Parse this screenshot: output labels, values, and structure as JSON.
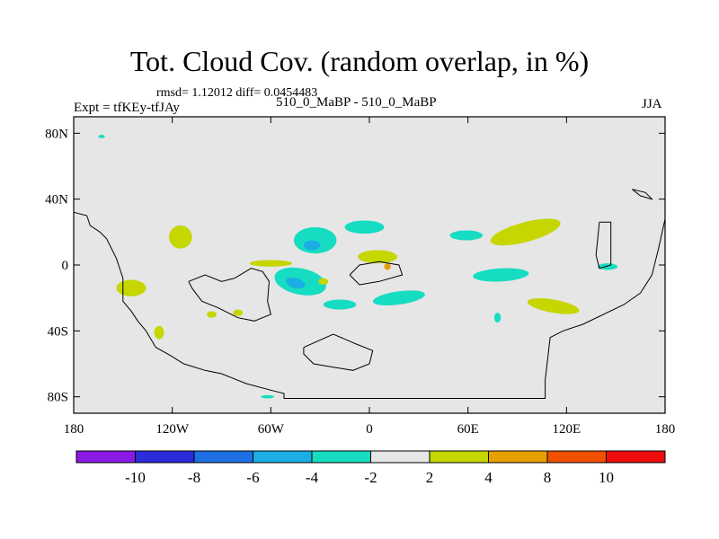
{
  "title": "Tot. Cloud Cov. (random overlap, in %)",
  "stats": "rmsd= 1.12012 diff= 0.0454483",
  "left_label": "Expt = tfKEy-tfJAy",
  "center_label": "510_0_MaBP - 510_0_MaBP",
  "right_label": "JJA",
  "colors": {
    "background_field": "#e6e6e6",
    "coastline": "#000000"
  },
  "chart_data": {
    "type": "heatmap",
    "projection": "cylindrical equidistant",
    "xlim": [
      -180,
      180
    ],
    "ylim": [
      -90,
      90
    ],
    "x_ticks": [
      {
        "value": -180,
        "label": "180"
      },
      {
        "value": -120,
        "label": "120W"
      },
      {
        "value": -60,
        "label": "60W"
      },
      {
        "value": 0,
        "label": "0"
      },
      {
        "value": 60,
        "label": "60E"
      },
      {
        "value": 120,
        "label": "120E"
      },
      {
        "value": 180,
        "label": "180"
      }
    ],
    "y_ticks": [
      {
        "value": 80,
        "label": "80N"
      },
      {
        "value": 40,
        "label": "40N"
      },
      {
        "value": 0,
        "label": "0"
      },
      {
        "value": -40,
        "label": "40S"
      },
      {
        "value": -80,
        "label": "80S"
      }
    ],
    "colorbar": {
      "levels": [
        -10,
        -8,
        -6,
        -4,
        -2,
        2,
        4,
        8,
        10
      ],
      "level_labels": [
        "-10",
        "-8",
        "-6",
        "-4",
        "-2",
        "2",
        "4",
        "8",
        "10"
      ],
      "colors": [
        "#8a1ae6",
        "#2b2bd9",
        "#1d6fe3",
        "#1aaee3",
        "#16dcc2",
        "#e6e6e6",
        "#c5d600",
        "#e6a000",
        "#f05000",
        "#ee0c0c"
      ]
    },
    "coastlines": [
      [
        [
          -180,
          32
        ],
        [
          -172,
          30
        ],
        [
          -170,
          24
        ],
        [
          -164,
          20
        ],
        [
          -160,
          16
        ],
        [
          -154,
          4
        ],
        [
          -150,
          -8
        ],
        [
          -150,
          -22
        ],
        [
          -145,
          -28
        ],
        [
          -141,
          -34
        ],
        [
          -136,
          -40
        ],
        [
          -130,
          -50
        ],
        [
          -121,
          -55
        ],
        [
          -113,
          -60
        ],
        [
          -100,
          -64
        ],
        [
          -90,
          -66
        ],
        [
          -75,
          -72
        ],
        [
          -60,
          -76
        ],
        [
          -52,
          -78
        ],
        [
          -52,
          -81
        ],
        [
          -20,
          -81
        ],
        [
          10,
          -81
        ],
        [
          40,
          -81
        ],
        [
          80,
          -81
        ],
        [
          107,
          -81
        ],
        [
          107,
          -70
        ],
        [
          110,
          -44
        ],
        [
          118,
          -40
        ],
        [
          130,
          -36
        ],
        [
          155,
          -24
        ],
        [
          165,
          -17
        ],
        [
          172,
          -6
        ],
        [
          176,
          10
        ],
        [
          180,
          28
        ]
      ],
      [
        [
          -110,
          -10
        ],
        [
          -100,
          -6
        ],
        [
          -90,
          -10
        ],
        [
          -82,
          -8
        ],
        [
          -72,
          -2
        ],
        [
          -65,
          -4
        ],
        [
          -61,
          -10
        ],
        [
          -62,
          -22
        ],
        [
          -60,
          -30
        ],
        [
          -70,
          -34
        ],
        [
          -80,
          -32
        ],
        [
          -92,
          -26
        ],
        [
          -102,
          -22
        ],
        [
          -108,
          -14
        ],
        [
          -110,
          -10
        ]
      ],
      [
        [
          -40,
          -50
        ],
        [
          -22,
          -42
        ],
        [
          -8,
          -48
        ],
        [
          2,
          -52
        ],
        [
          0,
          -60
        ],
        [
          -10,
          -64
        ],
        [
          -22,
          -62
        ],
        [
          -34,
          -60
        ],
        [
          -40,
          -54
        ],
        [
          -40,
          -50
        ]
      ],
      [
        [
          -12,
          -6
        ],
        [
          -6,
          0
        ],
        [
          6,
          2
        ],
        [
          18,
          0
        ],
        [
          20,
          -6
        ],
        [
          6,
          -10
        ],
        [
          -6,
          -12
        ],
        [
          -12,
          -6
        ]
      ],
      [
        [
          140,
          26
        ],
        [
          147,
          26
        ],
        [
          147,
          0
        ],
        [
          140,
          -2
        ],
        [
          138,
          6
        ],
        [
          140,
          26
        ]
      ],
      [
        [
          160,
          46
        ],
        [
          168,
          44
        ],
        [
          172,
          40
        ],
        [
          165,
          42
        ],
        [
          160,
          46
        ]
      ]
    ],
    "regions": [
      {
        "lon": -115,
        "lat": 17,
        "rx": 7,
        "ry": 7,
        "rot": -10,
        "level": 4
      },
      {
        "lon": -145,
        "lat": -14,
        "rx": 9,
        "ry": 5,
        "rot": 0,
        "level": 4
      },
      {
        "lon": -128,
        "lat": -41,
        "rx": 3,
        "ry": 4,
        "rot": 0,
        "level": 4
      },
      {
        "lon": -96,
        "lat": -30,
        "rx": 3,
        "ry": 2,
        "rot": 0,
        "level": 4
      },
      {
        "lon": -80,
        "lat": -29,
        "rx": 3,
        "ry": 2,
        "rot": 0,
        "level": 4
      },
      {
        "lon": -33,
        "lat": 15,
        "rx": 13,
        "ry": 8,
        "rot": 0,
        "level": -2
      },
      {
        "lon": -35,
        "lat": 12,
        "rx": 5,
        "ry": 3,
        "rot": 0,
        "level": -4
      },
      {
        "lon": -42,
        "lat": -10,
        "rx": 16,
        "ry": 8,
        "rot": 12,
        "level": -2
      },
      {
        "lon": -45,
        "lat": -11,
        "rx": 6,
        "ry": 3,
        "rot": 15,
        "level": -4
      },
      {
        "lon": -3,
        "lat": 23,
        "rx": 12,
        "ry": 4,
        "rot": 0,
        "level": -2
      },
      {
        "lon": -18,
        "lat": -24,
        "rx": 10,
        "ry": 3,
        "rot": 0,
        "level": -2
      },
      {
        "lon": 18,
        "lat": -20,
        "rx": 16,
        "ry": 4,
        "rot": -8,
        "level": -2
      },
      {
        "lon": -60,
        "lat": 1,
        "rx": 13,
        "ry": 2,
        "rot": 0,
        "level": 4
      },
      {
        "lon": -28,
        "lat": -10,
        "rx": 3,
        "ry": 2,
        "rot": 0,
        "level": 4
      },
      {
        "lon": 5,
        "lat": 5,
        "rx": 12,
        "ry": 4,
        "rot": 0,
        "level": 4
      },
      {
        "lon": 11,
        "lat": -1,
        "rx": 2,
        "ry": 2,
        "rot": 0,
        "level": 8
      },
      {
        "lon": 59,
        "lat": 18,
        "rx": 10,
        "ry": 3,
        "rot": 0,
        "level": -2
      },
      {
        "lon": 95,
        "lat": 20,
        "rx": 22,
        "ry": 6,
        "rot": -15,
        "level": 4
      },
      {
        "lon": 80,
        "lat": -6,
        "rx": 17,
        "ry": 4,
        "rot": -3,
        "level": -2
      },
      {
        "lon": 112,
        "lat": -25,
        "rx": 16,
        "ry": 4,
        "rot": 10,
        "level": 4
      },
      {
        "lon": 145,
        "lat": -1,
        "rx": 6,
        "ry": 2,
        "rot": 0,
        "level": -2
      },
      {
        "lon": 78,
        "lat": -32,
        "rx": 2,
        "ry": 3,
        "rot": 0,
        "level": -2
      },
      {
        "lon": -163,
        "lat": 78,
        "rx": 2,
        "ry": 1,
        "rot": 0,
        "level": -2
      },
      {
        "lon": -62,
        "lat": -80,
        "rx": 4,
        "ry": 1,
        "rot": 0,
        "level": -2
      }
    ]
  }
}
